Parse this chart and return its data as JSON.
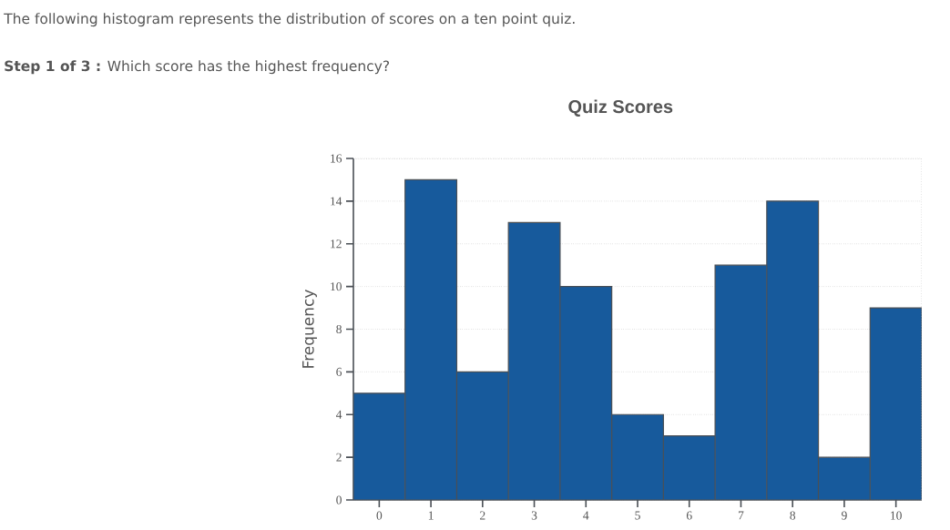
{
  "chart_data": {
    "type": "histogram",
    "title": "Quiz Scores",
    "ylabel": "Frequency",
    "annotations": [
      "The following histogram represents the distribution of scores on a ten point quiz.",
      "**Step 1 of 3 :** Which score has the highest frequency?"
    ],
    "bins": [
      -0.5,
      0.5,
      1.5,
      2.5,
      3.5,
      4.5,
      5.5,
      6.5,
      7.5,
      8.5,
      9.5,
      10.5
    ],
    "values": [
      5,
      15,
      6,
      13,
      10,
      4,
      3,
      11,
      14,
      2,
      9
    ],
    "color": "#175a9c",
    "xlim": [
      -0.5,
      10.5
    ],
    "xticks": [
      0,
      1,
      2,
      3,
      4,
      5,
      6,
      7,
      8,
      9,
      10
    ],
    "ylim": [
      0,
      16
    ],
    "yticks": [
      0,
      2,
      4,
      6,
      8,
      10,
      12,
      14,
      16
    ],
    "grid": "y"
  }
}
